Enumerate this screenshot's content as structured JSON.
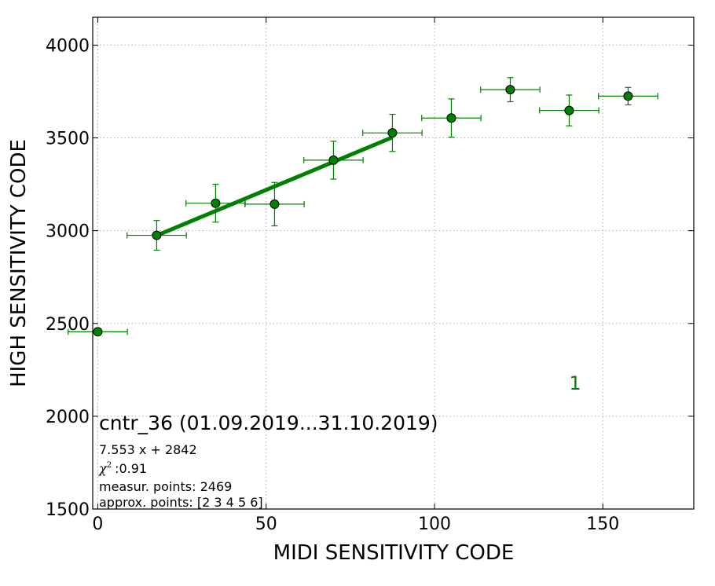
{
  "chart_data": {
    "type": "scatter",
    "xlabel": "MIDI SENSITIVITY CODE",
    "ylabel": "HIGH SENSITIVITY CODE",
    "xlim": [
      -1.5,
      177
    ],
    "ylim": [
      1500,
      4150
    ],
    "xticks": [
      "0",
      "50",
      "100",
      "150"
    ],
    "yticks": [
      "1500",
      "2000",
      "2500",
      "3000",
      "3500",
      "4000"
    ],
    "grid": true,
    "colors": {
      "points": "#008000",
      "errorbars": "#008000",
      "fit_line": "#008000",
      "panel_label": "#008000",
      "grid": "#b0b0b0"
    },
    "series": [
      {
        "points": [
          {
            "x": 0,
            "y": 2455,
            "xerr": 8.8,
            "yerr": 0
          },
          {
            "x": 17.5,
            "y": 2975,
            "xerr": 8.8,
            "yerr": 80
          },
          {
            "x": 35,
            "y": 3148,
            "xerr": 8.8,
            "yerr": 102
          },
          {
            "x": 52.5,
            "y": 3143,
            "xerr": 8.8,
            "yerr": 117
          },
          {
            "x": 70,
            "y": 3380,
            "xerr": 8.8,
            "yerr": 102
          },
          {
            "x": 87.5,
            "y": 3527,
            "xerr": 8.8,
            "yerr": 100
          },
          {
            "x": 105,
            "y": 3607,
            "xerr": 8.8,
            "yerr": 103
          },
          {
            "x": 122.5,
            "y": 3760,
            "xerr": 8.8,
            "yerr": 65
          },
          {
            "x": 140,
            "y": 3648,
            "xerr": 8.8,
            "yerr": 83
          },
          {
            "x": 157.5,
            "y": 3725,
            "xerr": 8.8,
            "yerr": 47
          }
        ]
      }
    ],
    "fit": {
      "slope": 7.553,
      "intercept": 2842,
      "x_range": [
        17.5,
        87.5
      ]
    },
    "annotations": {
      "title": "cntr_36 (01.09.2019...31.10.2019)",
      "equation": "7.553 x + 2842",
      "chi_symbol": "χ",
      "chi_power": "2",
      "chi_value": ":0.91",
      "measur": "measur. points: 2469",
      "approx": "approx. points: [2 3 4 5 6]",
      "panel_label": "1"
    }
  }
}
